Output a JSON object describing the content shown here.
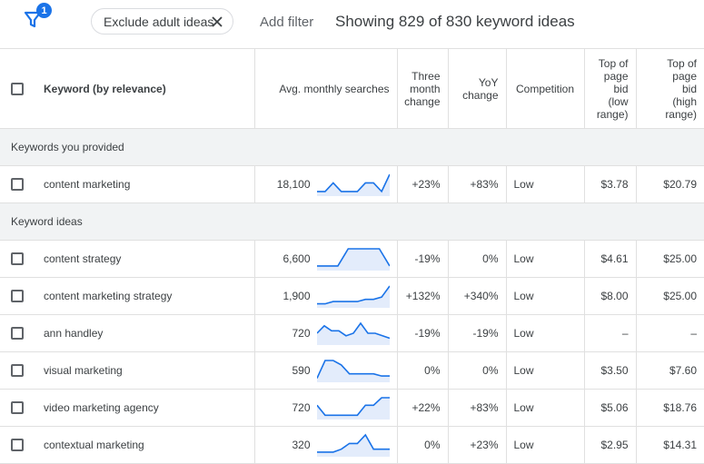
{
  "filter": {
    "badge_count": "1",
    "icon": "filter-icon"
  },
  "chip": {
    "label": "Exclude adult ideas",
    "close_icon": "close-icon"
  },
  "add_filter_label": "Add filter",
  "showing_text": "Showing 829 of 830 keyword ideas",
  "colors": {
    "accent": "#1a73e8",
    "spark_fill": "#e3ecfb",
    "section_bg": "#f1f3f4"
  },
  "columns": {
    "keyword": "Keyword (by relevance)",
    "searches": "Avg. monthly searches",
    "three_month": [
      "Three",
      "month",
      "change"
    ],
    "yoy": [
      "YoY",
      "change"
    ],
    "competition": "Competition",
    "bid_low": [
      "Top of",
      "page",
      "bid",
      "(low",
      "range)"
    ],
    "bid_high": [
      "Top of",
      "page",
      "bid",
      "(high",
      "range)"
    ]
  },
  "sections": [
    {
      "title": "Keywords you provided",
      "rows": [
        {
          "keyword": "content marketing",
          "searches": "18,100",
          "three_month": "+23%",
          "yoy": "+83%",
          "competition": "Low",
          "bid_low": "$3.78",
          "bid_high": "$20.79",
          "trend": [
            1,
            1,
            4,
            1,
            1,
            1,
            4,
            4,
            1,
            7
          ]
        }
      ]
    },
    {
      "title": "Keyword ideas",
      "rows": [
        {
          "keyword": "content strategy",
          "searches": "6,600",
          "three_month": "-19%",
          "yoy": "0%",
          "competition": "Low",
          "bid_low": "$4.61",
          "bid_high": "$25.00",
          "trend": [
            1,
            1,
            1,
            7,
            7,
            7,
            7,
            1
          ]
        },
        {
          "keyword": "content marketing strategy",
          "searches": "1,900",
          "three_month": "+132%",
          "yoy": "+340%",
          "competition": "Low",
          "bid_low": "$8.00",
          "bid_high": "$25.00",
          "trend": [
            1,
            1,
            2,
            2,
            2,
            2,
            3,
            3,
            4,
            9
          ]
        },
        {
          "keyword": "ann handley",
          "searches": "720",
          "three_month": "-19%",
          "yoy": "-19%",
          "competition": "Low",
          "bid_low": "–",
          "bid_high": "–",
          "trend": [
            4,
            7,
            5,
            5,
            3,
            4,
            8,
            4,
            4,
            3,
            2
          ]
        },
        {
          "keyword": "visual marketing",
          "searches": "590",
          "three_month": "0%",
          "yoy": "0%",
          "competition": "Low",
          "bid_low": "$3.50",
          "bid_high": "$7.60",
          "trend": [
            1,
            9,
            9,
            7,
            3,
            3,
            3,
            3,
            2,
            2
          ]
        },
        {
          "keyword": "video marketing agency",
          "searches": "720",
          "three_month": "+22%",
          "yoy": "+83%",
          "competition": "Low",
          "bid_low": "$5.06",
          "bid_high": "$18.76",
          "trend": [
            5,
            1,
            1,
            1,
            1,
            1,
            5,
            5,
            8,
            8
          ]
        },
        {
          "keyword": "contextual marketing",
          "searches": "320",
          "three_month": "0%",
          "yoy": "+23%",
          "competition": "Low",
          "bid_low": "$2.95",
          "bid_high": "$14.31",
          "trend": [
            1,
            1,
            1,
            2,
            4,
            4,
            7,
            2,
            2,
            2
          ]
        }
      ]
    }
  ]
}
